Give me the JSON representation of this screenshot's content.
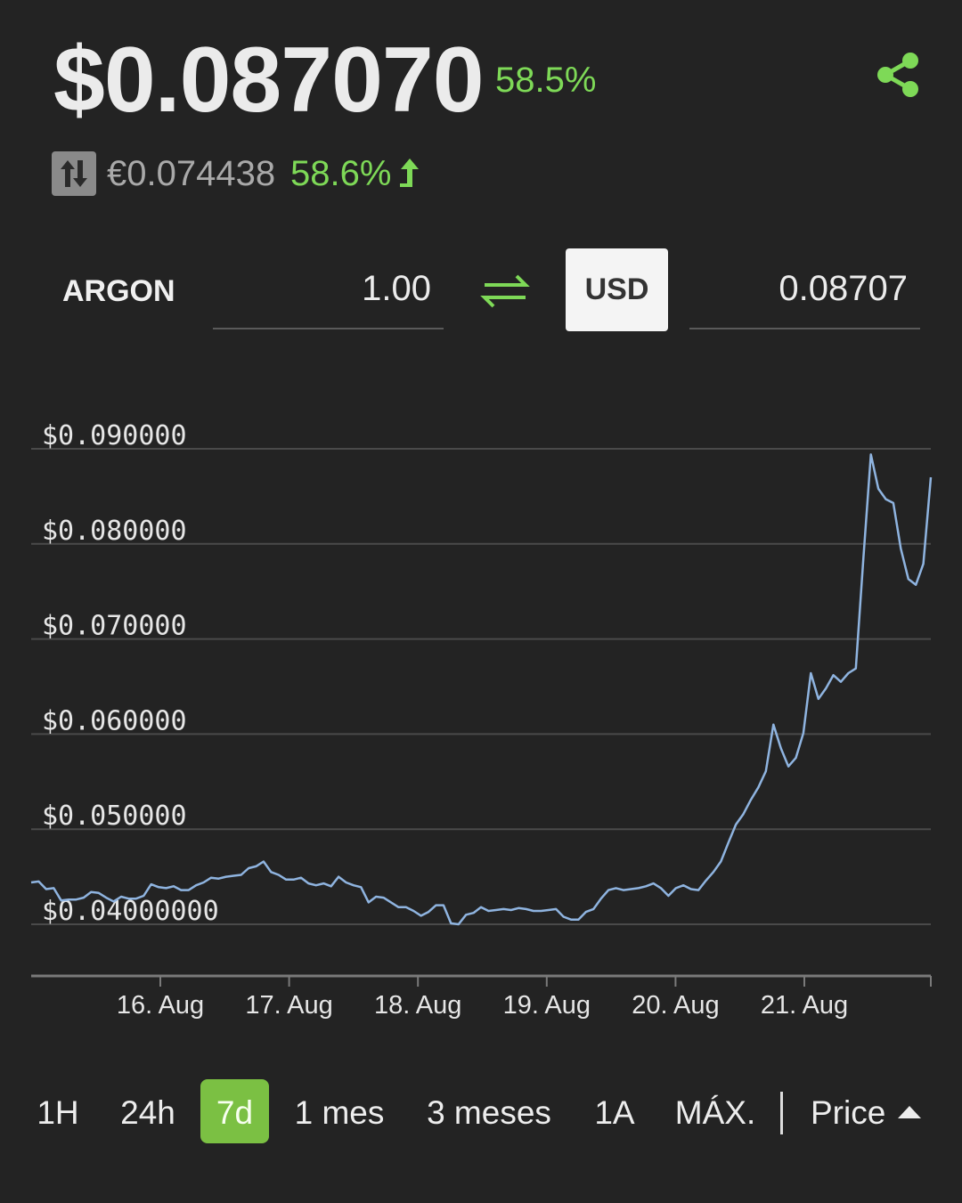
{
  "header": {
    "price": "$0.087070",
    "change": "58.5%",
    "alt_price": "€0.074438",
    "alt_change": "58.6%"
  },
  "converter": {
    "from_symbol": "ARGON",
    "from_value": "1.00",
    "to_currency": "USD",
    "to_value": "0.08707"
  },
  "icons": {
    "share": "share-icon",
    "swap_currency": "up-down-arrows-icon",
    "trend": "up-arrow-icon",
    "swap": "swap-arrows-icon",
    "sort": "caret-up-icon"
  },
  "colors": {
    "background": "#232323",
    "accent_green": "#7ed957",
    "button_green": "#7bc043",
    "line_blue": "#8fb4e0"
  },
  "range_tabs": [
    {
      "label": "1H",
      "active": false
    },
    {
      "label": "24h",
      "active": false
    },
    {
      "label": "7d",
      "active": true
    },
    {
      "label": "1 mes",
      "active": false
    },
    {
      "label": "3 meses",
      "active": false
    },
    {
      "label": "1A",
      "active": false
    },
    {
      "label": "MÁX.",
      "active": false
    }
  ],
  "sort_label": "Price",
  "chart_data": {
    "type": "line",
    "title": "",
    "xlabel": "",
    "ylabel": "",
    "x_ticks": [
      "16. Aug",
      "17. Aug",
      "18. Aug",
      "19. Aug",
      "20. Aug",
      "21. Aug"
    ],
    "y_ticks": [
      "$0.090000",
      "$0.080000",
      "$0.070000",
      "$0.060000",
      "$0.050000",
      "$0.04000000"
    ],
    "ylim": [
      0.04,
      0.09
    ],
    "grid": true,
    "series": [
      {
        "values": [
          0.0444,
          0.0445,
          0.0437,
          0.0438,
          0.0425,
          0.0426,
          0.0426,
          0.0428,
          0.0434,
          0.0433,
          0.0428,
          0.0424,
          0.0429,
          0.0427,
          0.0427,
          0.043,
          0.0442,
          0.0439,
          0.0438,
          0.044,
          0.0436,
          0.0436,
          0.0441,
          0.0444,
          0.0449,
          0.0448,
          0.045,
          0.0451,
          0.0452,
          0.0459,
          0.0461,
          0.0466,
          0.0455,
          0.0452,
          0.0447,
          0.0447,
          0.0449,
          0.0443,
          0.0441,
          0.0443,
          0.044,
          0.045,
          0.0444,
          0.0441,
          0.0439,
          0.0423,
          0.0429,
          0.0428,
          0.0423,
          0.0418,
          0.0418,
          0.0414,
          0.0409,
          0.0413,
          0.042,
          0.042,
          0.0401,
          0.04,
          0.041,
          0.0412,
          0.0418,
          0.0414,
          0.0415,
          0.0416,
          0.0415,
          0.0417,
          0.0416,
          0.0414,
          0.0414,
          0.0415,
          0.0416,
          0.0408,
          0.0405,
          0.0405,
          0.0413,
          0.0416,
          0.0427,
          0.0436,
          0.0438,
          0.0436,
          0.0437,
          0.0438,
          0.044,
          0.0443,
          0.0438,
          0.043,
          0.0438,
          0.0441,
          0.0437,
          0.0436,
          0.0446,
          0.0455,
          0.0466,
          0.0486,
          0.0505,
          0.0516,
          0.0531,
          0.0544,
          0.0561,
          0.061,
          0.0585,
          0.0566,
          0.0575,
          0.0601,
          0.0664,
          0.0637,
          0.0648,
          0.0662,
          0.0655,
          0.0664,
          0.0669,
          0.0785,
          0.0894,
          0.0858,
          0.0847,
          0.0843,
          0.0795,
          0.0763,
          0.0757,
          0.0779,
          0.087
        ]
      }
    ]
  }
}
